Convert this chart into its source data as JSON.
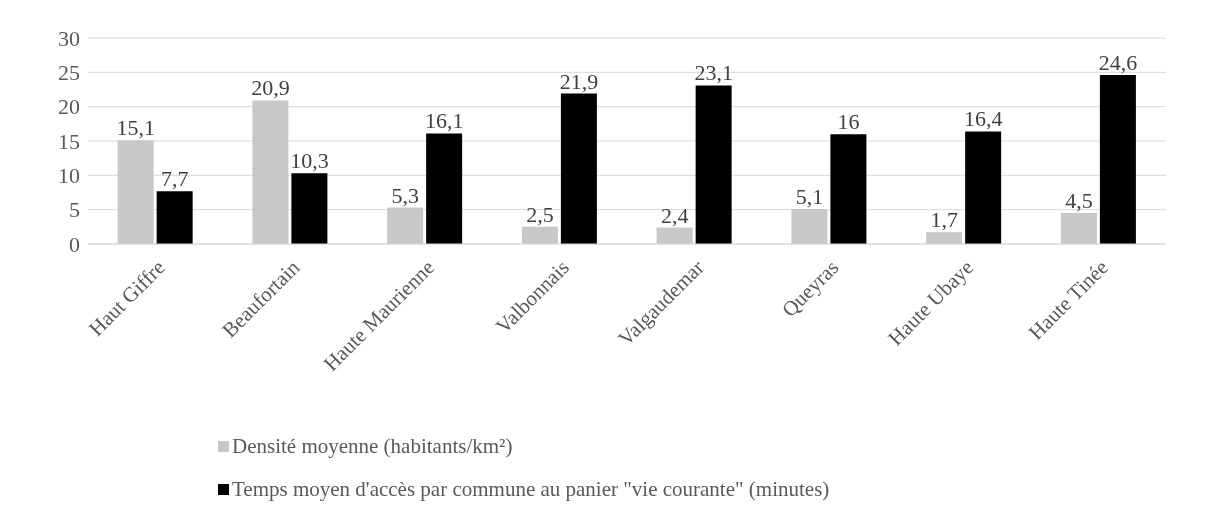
{
  "chart_data": {
    "type": "bar",
    "categories": [
      "Haut Giffre",
      "Beaufortain",
      "Haute Maurienne",
      "Valbonnais",
      "Valgaudemar",
      "Queyras",
      "Haute Ubaye",
      "Haute Tinée"
    ],
    "series": [
      {
        "name": "Densité moyenne (habitants/km²)",
        "color": "#c8c8c8",
        "values": [
          15.1,
          20.9,
          5.3,
          2.5,
          2.4,
          5.1,
          1.7,
          4.5
        ],
        "value_labels": [
          "15,1",
          "20,9",
          "5,3",
          "2,5",
          "2,4",
          "5,1",
          "1,7",
          "4,5"
        ]
      },
      {
        "name": "Temps moyen d'accès par commune au panier \"vie courante\" (minutes)",
        "color": "#000000",
        "values": [
          7.7,
          10.3,
          16.1,
          21.9,
          23.1,
          16,
          16.4,
          24.6
        ],
        "value_labels": [
          "7,7",
          "10,3",
          "16,1",
          "21,9",
          "23,1",
          "16",
          "16,4",
          "24,6"
        ]
      }
    ],
    "ylim": [
      0,
      30
    ],
    "yticks": [
      0,
      5,
      10,
      15,
      20,
      25,
      30
    ],
    "grid": "y",
    "legend": "bottom"
  }
}
